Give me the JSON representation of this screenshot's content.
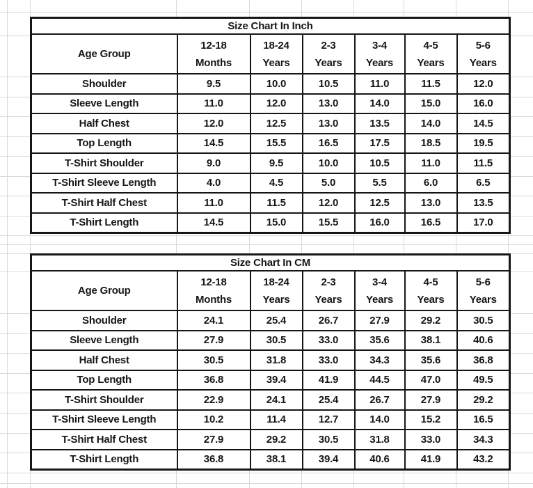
{
  "colors": {
    "sheet_background": "#ffffff",
    "gridline": "#d9d9d9",
    "table_border": "#161616",
    "text": "#161616"
  },
  "tables": [
    {
      "title": "Size Chart In Inch",
      "corner_header": "Age Group",
      "column_headers": [
        "12-18\nMonths",
        "18-24\nYears",
        "2-3\nYears",
        "3-4\nYears",
        "4-5\nYears",
        "5-6\nYears"
      ],
      "rows": [
        {
          "label": "Shoulder",
          "values": [
            "9.5",
            "10.0",
            "10.5",
            "11.0",
            "11.5",
            "12.0"
          ]
        },
        {
          "label": "Sleeve Length",
          "values": [
            "11.0",
            "12.0",
            "13.0",
            "14.0",
            "15.0",
            "16.0"
          ]
        },
        {
          "label": "Half Chest",
          "values": [
            "12.0",
            "12.5",
            "13.0",
            "13.5",
            "14.0",
            "14.5"
          ]
        },
        {
          "label": "Top Length",
          "values": [
            "14.5",
            "15.5",
            "16.5",
            "17.5",
            "18.5",
            "19.5"
          ]
        },
        {
          "label": "T-Shirt Shoulder",
          "values": [
            "9.0",
            "9.5",
            "10.0",
            "10.5",
            "11.0",
            "11.5"
          ]
        },
        {
          "label": "T-Shirt Sleeve Length",
          "values": [
            "4.0",
            "4.5",
            "5.0",
            "5.5",
            "6.0",
            "6.5"
          ]
        },
        {
          "label": "T-Shirt Half Chest",
          "values": [
            "11.0",
            "11.5",
            "12.0",
            "12.5",
            "13.0",
            "13.5"
          ]
        },
        {
          "label": "T-Shirt Length",
          "values": [
            "14.5",
            "15.0",
            "15.5",
            "16.0",
            "16.5",
            "17.0"
          ]
        }
      ]
    },
    {
      "title": "Size Chart In CM",
      "corner_header": "Age Group",
      "column_headers": [
        "12-18\nMonths",
        "18-24\nYears",
        "2-3\nYears",
        "3-4\nYears",
        "4-5\nYears",
        "5-6\nYears"
      ],
      "rows": [
        {
          "label": "Shoulder",
          "values": [
            "24.1",
            "25.4",
            "26.7",
            "27.9",
            "29.2",
            "30.5"
          ]
        },
        {
          "label": "Sleeve Length",
          "values": [
            "27.9",
            "30.5",
            "33.0",
            "35.6",
            "38.1",
            "40.6"
          ]
        },
        {
          "label": "Half Chest",
          "values": [
            "30.5",
            "31.8",
            "33.0",
            "34.3",
            "35.6",
            "36.8"
          ]
        },
        {
          "label": "Top Length",
          "values": [
            "36.8",
            "39.4",
            "41.9",
            "44.5",
            "47.0",
            "49.5"
          ]
        },
        {
          "label": "T-Shirt Shoulder",
          "values": [
            "22.9",
            "24.1",
            "25.4",
            "26.7",
            "27.9",
            "29.2"
          ]
        },
        {
          "label": "T-Shirt Sleeve Length",
          "values": [
            "10.2",
            "11.4",
            "12.7",
            "14.0",
            "15.2",
            "16.5"
          ]
        },
        {
          "label": "T-Shirt Half Chest",
          "values": [
            "27.9",
            "29.2",
            "30.5",
            "31.8",
            "33.0",
            "34.3"
          ]
        },
        {
          "label": "T-Shirt Length",
          "values": [
            "36.8",
            "38.1",
            "39.4",
            "40.6",
            "41.9",
            "43.2"
          ]
        }
      ]
    }
  ]
}
